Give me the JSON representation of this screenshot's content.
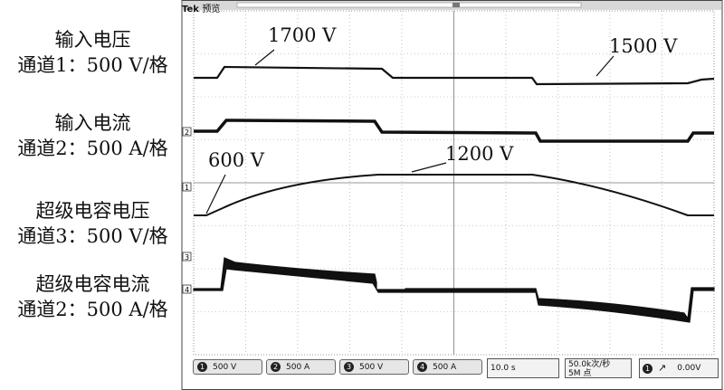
{
  "scope": {
    "brand": "Tek",
    "mode": "预览",
    "markers": {
      "ch1": "1",
      "ch2": "2",
      "ch3": "3",
      "ch4": "4"
    }
  },
  "labels": {
    "input_voltage": {
      "name": "输入电压",
      "scale": "通道1：500 V/格"
    },
    "input_current": {
      "name": "输入电流",
      "scale": "通道2：500 A/格"
    },
    "sc_voltage": {
      "name": "超级电容电压",
      "scale": "通道3：500 V/格"
    },
    "sc_current": {
      "name": "超级电容电流",
      "scale": "通道2：500 A/格"
    }
  },
  "annotations": {
    "v1700": "1700 V",
    "v1500": "1500 V",
    "v600": "600 V",
    "v1200": "1200 V"
  },
  "status": {
    "ch1": {
      "num": "1",
      "value": "500 V"
    },
    "ch2": {
      "num": "2",
      "value": "500 A"
    },
    "ch3": {
      "num": "3",
      "value": "500 V"
    },
    "ch4": {
      "num": "4",
      "value": "500 A"
    },
    "timebase": "10.0 s",
    "sample_rate": "50.0k次/秒",
    "record_length": "5M 点",
    "trigger_channel": "1",
    "trigger_icon": "rising-edge-icon",
    "trigger_level": "0.00V"
  }
}
